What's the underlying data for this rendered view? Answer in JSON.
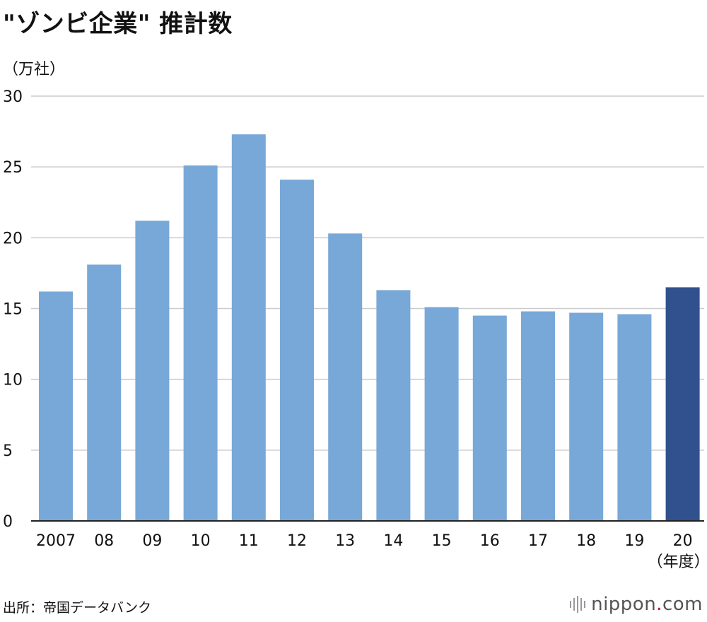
{
  "header": {
    "title": "\"ゾンビ企業\" 推計数",
    "unit_label": "（万社）"
  },
  "footer": {
    "source": "出所：帝国データバンク",
    "brand_main": "nippon",
    "brand_dot": ".",
    "brand_tld": "com"
  },
  "chart_data": {
    "type": "bar",
    "title": "\"ゾンビ企業\" 推計数",
    "ylabel": "（万社）",
    "xlabel": "（年度）",
    "categories": [
      "2007",
      "08",
      "09",
      "10",
      "11",
      "12",
      "13",
      "14",
      "15",
      "16",
      "17",
      "18",
      "19",
      "20"
    ],
    "values": [
      16.2,
      18.1,
      21.2,
      25.1,
      27.3,
      24.1,
      20.3,
      16.3,
      15.1,
      14.5,
      14.8,
      14.7,
      14.6,
      16.5
    ],
    "ylim": [
      0,
      30
    ],
    "yticks": [
      0,
      5,
      10,
      15,
      20,
      25,
      30
    ],
    "grid": true,
    "colors": {
      "bar": "#78a8d8",
      "highlight_bar": "#30508e",
      "grid": "#cccccc",
      "axis": "#222222"
    },
    "highlight_index": 13
  }
}
